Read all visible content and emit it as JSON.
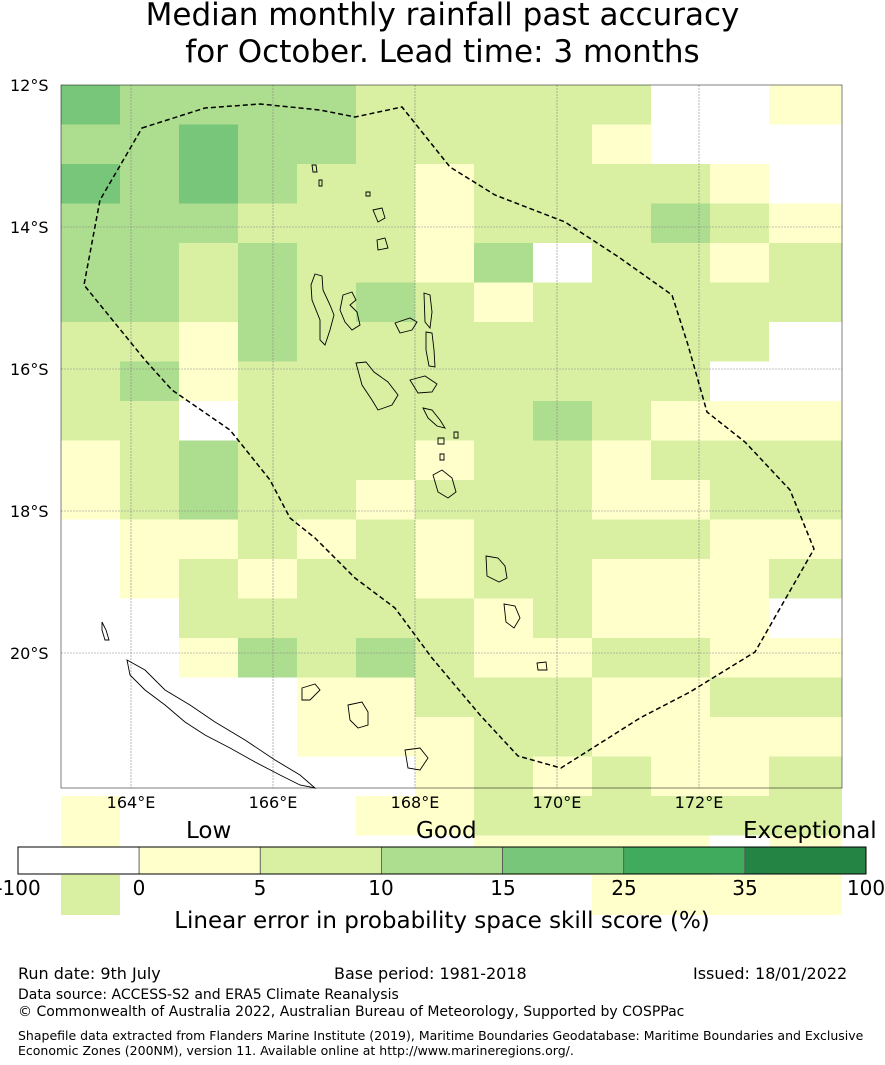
{
  "title": {
    "line1": "Median monthly rainfall past accuracy",
    "line2": "for October. Lead time: 3 months"
  },
  "map": {
    "lat_ticks": [
      "12°S",
      "14°S",
      "16°S",
      "18°S",
      "20°S"
    ],
    "lon_ticks": [
      "164°E",
      "166°E",
      "168°E",
      "170°E",
      "172°E"
    ],
    "extent": {
      "lon": [
        163,
        174
      ],
      "lat": [
        -12,
        -21.9
      ]
    },
    "cell_deg": 0.833
  },
  "legend": {
    "categories": [
      "Low",
      "Good",
      "Exceptional"
    ],
    "tick_labels": [
      "-100",
      "0",
      "5",
      "10",
      "15",
      "25",
      "35",
      "100"
    ],
    "colors": [
      "#ffffff",
      "#ffffcc",
      "#d9f0a3",
      "#addd8e",
      "#78c679",
      "#41ab5d",
      "#238443"
    ],
    "label": "Linear error in probability space skill score (%)"
  },
  "footer": {
    "run_date": "Run date: 9th July",
    "base_period": "Base period: 1981-2018",
    "issued": "Issued: 18/01/2022",
    "data_source": "Data source: ACCESS-S2 and ERA5 Climate Reanalysis",
    "copyright": "© Commonwealth of Australia 2022, Australian Bureau of Meteorology, Supported by COSPPac",
    "shapefile_line1": "Shapefile data extracted from Flanders Marine Institute (2019), Maritime Boundaries Geodatabase: Maritime Boundaries and Exclusive",
    "shapefile_line2": "Economic Zones (200NM), version 11. Available online at http://www.marineregions.org/."
  },
  "grid": [
    "4333322222001",
    "3343322221000",
    "4343221222210",
    "3332221222321",
    "3323221302212",
    "3323232122222",
    "2213222222220",
    "2312222222200",
    "2202222232111",
    "1232221221222",
    "1232212221122",
    "0112121222211",
    "0121221221112",
    "0022222121110",
    "0013232112211",
    "0000112221122",
    "0000111221111",
    "0000001212112",
    "1000011222222",
    "1000000111101",
    "2000000001111"
  ]
}
